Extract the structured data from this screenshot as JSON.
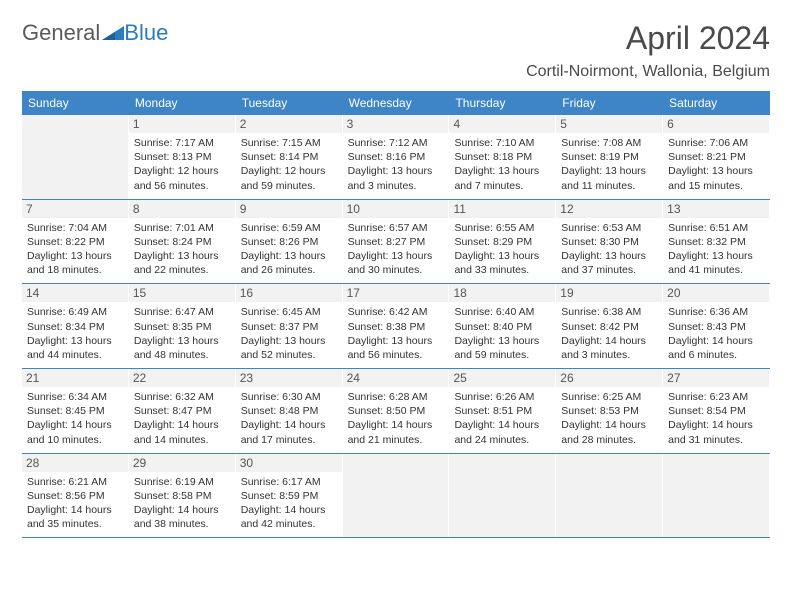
{
  "header": {
    "logo_part1": "General",
    "logo_part2": "Blue",
    "month_title": "April 2024",
    "location": "Cortil-Noirmont, Wallonia, Belgium"
  },
  "style": {
    "header_bg": "#3d85c6",
    "empty_bg": "#f2f2f2",
    "text_color": "#333333",
    "dow_color": "#ffffff",
    "title_color": "#4a4a4a",
    "border_color": "#3d85c6",
    "font_family": "Arial, Helvetica, sans-serif",
    "title_fontsize": 32,
    "location_fontsize": 16,
    "dow_fontsize": 12,
    "cell_fontsize": 10.5
  },
  "days_of_week": [
    "Sunday",
    "Monday",
    "Tuesday",
    "Wednesday",
    "Thursday",
    "Friday",
    "Saturday"
  ],
  "weeks": [
    [
      null,
      {
        "n": "1",
        "sr": "Sunrise: 7:17 AM",
        "ss": "Sunset: 8:13 PM",
        "d1": "Daylight: 12 hours",
        "d2": "and 56 minutes."
      },
      {
        "n": "2",
        "sr": "Sunrise: 7:15 AM",
        "ss": "Sunset: 8:14 PM",
        "d1": "Daylight: 12 hours",
        "d2": "and 59 minutes."
      },
      {
        "n": "3",
        "sr": "Sunrise: 7:12 AM",
        "ss": "Sunset: 8:16 PM",
        "d1": "Daylight: 13 hours",
        "d2": "and 3 minutes."
      },
      {
        "n": "4",
        "sr": "Sunrise: 7:10 AM",
        "ss": "Sunset: 8:18 PM",
        "d1": "Daylight: 13 hours",
        "d2": "and 7 minutes."
      },
      {
        "n": "5",
        "sr": "Sunrise: 7:08 AM",
        "ss": "Sunset: 8:19 PM",
        "d1": "Daylight: 13 hours",
        "d2": "and 11 minutes."
      },
      {
        "n": "6",
        "sr": "Sunrise: 7:06 AM",
        "ss": "Sunset: 8:21 PM",
        "d1": "Daylight: 13 hours",
        "d2": "and 15 minutes."
      }
    ],
    [
      {
        "n": "7",
        "sr": "Sunrise: 7:04 AM",
        "ss": "Sunset: 8:22 PM",
        "d1": "Daylight: 13 hours",
        "d2": "and 18 minutes."
      },
      {
        "n": "8",
        "sr": "Sunrise: 7:01 AM",
        "ss": "Sunset: 8:24 PM",
        "d1": "Daylight: 13 hours",
        "d2": "and 22 minutes."
      },
      {
        "n": "9",
        "sr": "Sunrise: 6:59 AM",
        "ss": "Sunset: 8:26 PM",
        "d1": "Daylight: 13 hours",
        "d2": "and 26 minutes."
      },
      {
        "n": "10",
        "sr": "Sunrise: 6:57 AM",
        "ss": "Sunset: 8:27 PM",
        "d1": "Daylight: 13 hours",
        "d2": "and 30 minutes."
      },
      {
        "n": "11",
        "sr": "Sunrise: 6:55 AM",
        "ss": "Sunset: 8:29 PM",
        "d1": "Daylight: 13 hours",
        "d2": "and 33 minutes."
      },
      {
        "n": "12",
        "sr": "Sunrise: 6:53 AM",
        "ss": "Sunset: 8:30 PM",
        "d1": "Daylight: 13 hours",
        "d2": "and 37 minutes."
      },
      {
        "n": "13",
        "sr": "Sunrise: 6:51 AM",
        "ss": "Sunset: 8:32 PM",
        "d1": "Daylight: 13 hours",
        "d2": "and 41 minutes."
      }
    ],
    [
      {
        "n": "14",
        "sr": "Sunrise: 6:49 AM",
        "ss": "Sunset: 8:34 PM",
        "d1": "Daylight: 13 hours",
        "d2": "and 44 minutes."
      },
      {
        "n": "15",
        "sr": "Sunrise: 6:47 AM",
        "ss": "Sunset: 8:35 PM",
        "d1": "Daylight: 13 hours",
        "d2": "and 48 minutes."
      },
      {
        "n": "16",
        "sr": "Sunrise: 6:45 AM",
        "ss": "Sunset: 8:37 PM",
        "d1": "Daylight: 13 hours",
        "d2": "and 52 minutes."
      },
      {
        "n": "17",
        "sr": "Sunrise: 6:42 AM",
        "ss": "Sunset: 8:38 PM",
        "d1": "Daylight: 13 hours",
        "d2": "and 56 minutes."
      },
      {
        "n": "18",
        "sr": "Sunrise: 6:40 AM",
        "ss": "Sunset: 8:40 PM",
        "d1": "Daylight: 13 hours",
        "d2": "and 59 minutes."
      },
      {
        "n": "19",
        "sr": "Sunrise: 6:38 AM",
        "ss": "Sunset: 8:42 PM",
        "d1": "Daylight: 14 hours",
        "d2": "and 3 minutes."
      },
      {
        "n": "20",
        "sr": "Sunrise: 6:36 AM",
        "ss": "Sunset: 8:43 PM",
        "d1": "Daylight: 14 hours",
        "d2": "and 6 minutes."
      }
    ],
    [
      {
        "n": "21",
        "sr": "Sunrise: 6:34 AM",
        "ss": "Sunset: 8:45 PM",
        "d1": "Daylight: 14 hours",
        "d2": "and 10 minutes."
      },
      {
        "n": "22",
        "sr": "Sunrise: 6:32 AM",
        "ss": "Sunset: 8:47 PM",
        "d1": "Daylight: 14 hours",
        "d2": "and 14 minutes."
      },
      {
        "n": "23",
        "sr": "Sunrise: 6:30 AM",
        "ss": "Sunset: 8:48 PM",
        "d1": "Daylight: 14 hours",
        "d2": "and 17 minutes."
      },
      {
        "n": "24",
        "sr": "Sunrise: 6:28 AM",
        "ss": "Sunset: 8:50 PM",
        "d1": "Daylight: 14 hours",
        "d2": "and 21 minutes."
      },
      {
        "n": "25",
        "sr": "Sunrise: 6:26 AM",
        "ss": "Sunset: 8:51 PM",
        "d1": "Daylight: 14 hours",
        "d2": "and 24 minutes."
      },
      {
        "n": "26",
        "sr": "Sunrise: 6:25 AM",
        "ss": "Sunset: 8:53 PM",
        "d1": "Daylight: 14 hours",
        "d2": "and 28 minutes."
      },
      {
        "n": "27",
        "sr": "Sunrise: 6:23 AM",
        "ss": "Sunset: 8:54 PM",
        "d1": "Daylight: 14 hours",
        "d2": "and 31 minutes."
      }
    ],
    [
      {
        "n": "28",
        "sr": "Sunrise: 6:21 AM",
        "ss": "Sunset: 8:56 PM",
        "d1": "Daylight: 14 hours",
        "d2": "and 35 minutes."
      },
      {
        "n": "29",
        "sr": "Sunrise: 6:19 AM",
        "ss": "Sunset: 8:58 PM",
        "d1": "Daylight: 14 hours",
        "d2": "and 38 minutes."
      },
      {
        "n": "30",
        "sr": "Sunrise: 6:17 AM",
        "ss": "Sunset: 8:59 PM",
        "d1": "Daylight: 14 hours",
        "d2": "and 42 minutes."
      },
      null,
      null,
      null,
      null
    ]
  ]
}
